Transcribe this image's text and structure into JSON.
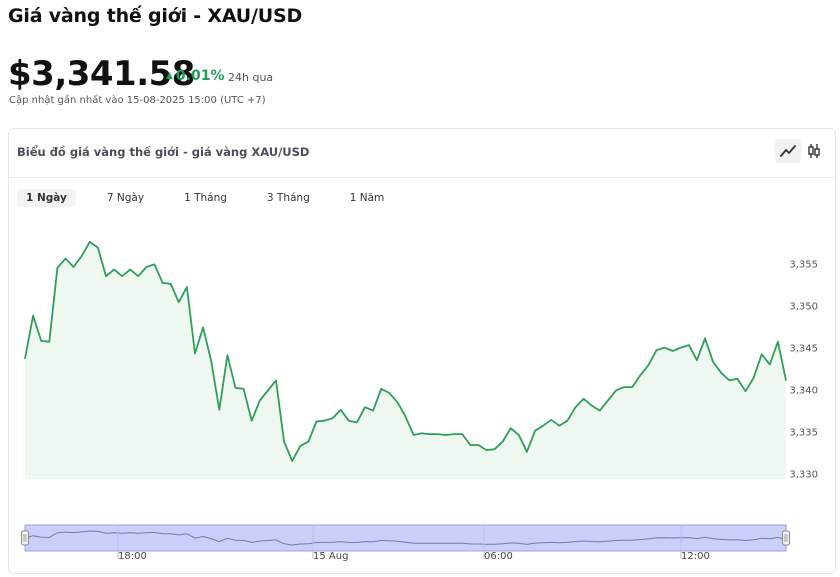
{
  "header": {
    "title": "Giá vàng thế giới - XAU/USD",
    "price": "$3,341.58",
    "change": "0.01%",
    "change_period": "24h qua",
    "updated": "Cập nhật gần nhất vào 15-08-2025 15:00 (UTC +7)"
  },
  "card": {
    "title": "Biểu đồ giá vàng thế giới - giá vàng XAU/USD",
    "toggle_icons": [
      "line-chart-icon",
      "candlestick-icon"
    ],
    "tabs": [
      {
        "label": "1 Ngày",
        "active": true
      },
      {
        "label": "7 Ngày",
        "active": false
      },
      {
        "label": "1 Tháng",
        "active": false
      },
      {
        "label": "3 Tháng",
        "active": false
      },
      {
        "label": "1 Năm",
        "active": false
      }
    ]
  },
  "colors": {
    "line": "#2f9e5a",
    "fill": "#eef7f0",
    "up": "#1f9d55",
    "navigator": "#c9cff7"
  },
  "chart_data": {
    "type": "area",
    "title": "",
    "xlabel": "",
    "ylabel": "",
    "ylim": [
      3329,
      3359
    ],
    "yticks": [
      3330,
      3335,
      3340,
      3345,
      3350,
      3355
    ],
    "ytick_labels": [
      "3,330",
      "3,335",
      "3,340",
      "3,345",
      "3,350",
      "3,355"
    ],
    "series": [
      {
        "values": [
          3343.7,
          3348.8,
          3345.8,
          3345.7,
          3354.5,
          3355.6,
          3354.6,
          3355.9,
          3357.6,
          3356.9,
          3353.5,
          3354.3,
          3353.5,
          3354.3,
          3353.5,
          3354.6,
          3354.9,
          3352.7,
          3352.6,
          3350.4,
          3352.2,
          3344.3,
          3347.4,
          3343.4,
          3337.6,
          3344.1,
          3340.2,
          3340.1,
          3336.3,
          3338.7,
          3339.9,
          3341.1,
          3333.8,
          3331.5,
          3333.3,
          3333.8,
          3336.2,
          3336.3,
          3336.6,
          3337.6,
          3336.3,
          3336.1,
          3337.9,
          3337.5,
          3340.1,
          3339.6,
          3338.5,
          3336.8,
          3334.6,
          3334.8,
          3334.7,
          3334.7,
          3334.6,
          3334.7,
          3334.7,
          3333.4,
          3333.4,
          3332.8,
          3332.9,
          3333.8,
          3335.4,
          3334.6,
          3332.6,
          3335.1,
          3335.7,
          3336.4,
          3335.7,
          3336.3,
          3337.9,
          3338.9,
          3338.1,
          3337.5,
          3338.7,
          3339.9,
          3340.3,
          3340.3,
          3341.7,
          3342.9,
          3344.7,
          3345.0,
          3344.6,
          3345.0,
          3345.3,
          3343.5,
          3346.1,
          3343.3,
          3342.0,
          3341.1,
          3341.3,
          3339.8,
          3341.4,
          3344.2,
          3343.0,
          3345.7,
          3341.1
        ]
      }
    ],
    "navigator_labels": [
      "18:00",
      "15 Aug",
      "06:00",
      "12:00"
    ],
    "grid": false
  }
}
